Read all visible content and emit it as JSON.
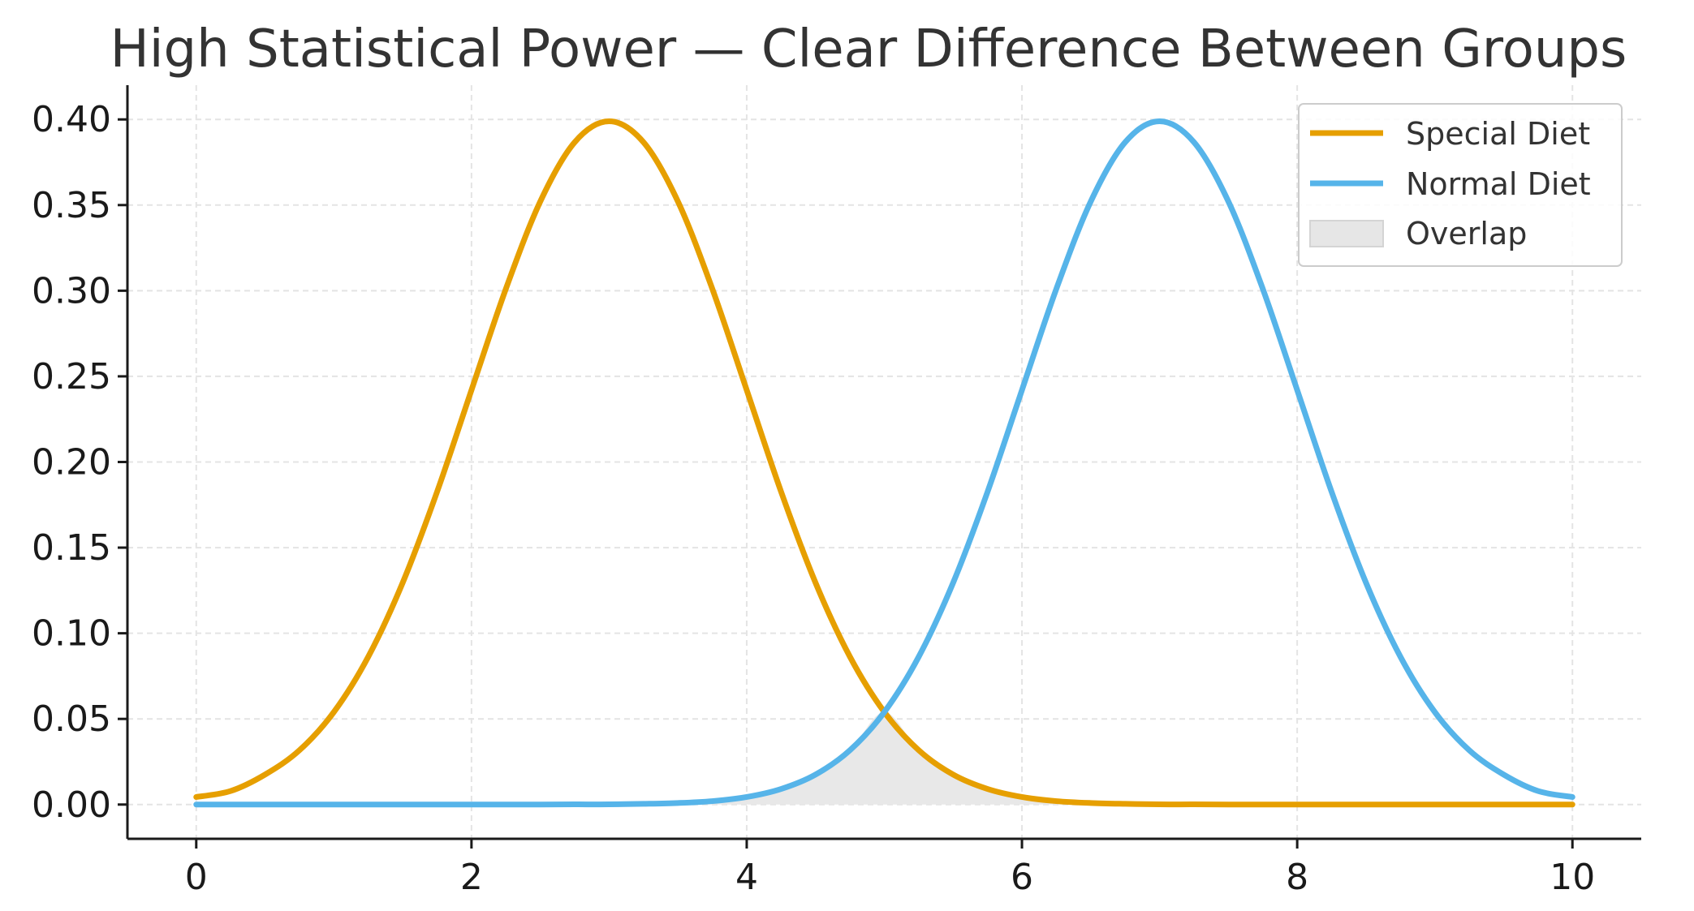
{
  "chart_data": {
    "type": "line",
    "title": "High Statistical Power — Clear Difference Between Groups",
    "xlabel": "",
    "ylabel": "",
    "xlim": [
      -0.5,
      10.5
    ],
    "ylim": [
      -0.02,
      0.42
    ],
    "xticks": [
      0,
      2,
      4,
      6,
      8,
      10
    ],
    "xtick_labels": [
      "0",
      "2",
      "4",
      "6",
      "8",
      "10"
    ],
    "yticks": [
      0.0,
      0.05,
      0.1,
      0.15,
      0.2,
      0.25,
      0.3,
      0.35,
      0.4
    ],
    "ytick_labels": [
      "0.00",
      "0.05",
      "0.10",
      "0.15",
      "0.20",
      "0.25",
      "0.30",
      "0.35",
      "0.40"
    ],
    "grid": true,
    "legend_position": "top-right",
    "x": [
      0,
      0.25,
      0.5,
      0.75,
      1,
      1.25,
      1.5,
      1.75,
      2,
      2.25,
      2.5,
      2.75,
      3,
      3.25,
      3.5,
      3.75,
      4,
      4.25,
      4.5,
      4.75,
      5,
      5.25,
      5.5,
      5.75,
      6,
      6.25,
      6.5,
      6.75,
      7,
      7.25,
      7.5,
      7.75,
      8,
      8.25,
      8.5,
      8.75,
      9,
      9.25,
      9.5,
      9.75,
      10
    ],
    "series": [
      {
        "name": "Special Diet",
        "color": "#E69F00",
        "values": [
          0.0044,
          0.0079,
          0.0175,
          0.0317,
          0.054,
          0.0863,
          0.1295,
          0.1826,
          0.242,
          0.3011,
          0.3521,
          0.3867,
          0.3989,
          0.3867,
          0.3521,
          0.3011,
          0.242,
          0.1826,
          0.1295,
          0.0863,
          0.054,
          0.0317,
          0.0175,
          0.0091,
          0.0044,
          0.002,
          0.0009,
          0.0004,
          0.0001,
          0.0001,
          0.0,
          0.0,
          0.0,
          0.0,
          0.0,
          0.0,
          0.0,
          0.0,
          0.0,
          0.0,
          0.0
        ]
      },
      {
        "name": "Normal Diet",
        "color": "#56B4E9",
        "values": [
          0.0,
          0.0,
          0.0,
          0.0,
          0.0,
          0.0,
          0.0,
          0.0,
          0.0,
          0.0,
          0.0,
          0.0001,
          0.0001,
          0.0004,
          0.0009,
          0.002,
          0.0044,
          0.0091,
          0.0175,
          0.0317,
          0.054,
          0.0863,
          0.1295,
          0.1826,
          0.242,
          0.3011,
          0.3521,
          0.3867,
          0.3989,
          0.3867,
          0.3521,
          0.3011,
          0.242,
          0.1826,
          0.1295,
          0.0863,
          0.054,
          0.0317,
          0.0175,
          0.0079,
          0.0044
        ]
      }
    ],
    "overlap": {
      "name": "Overlap",
      "color": "#E6E6E6"
    }
  }
}
